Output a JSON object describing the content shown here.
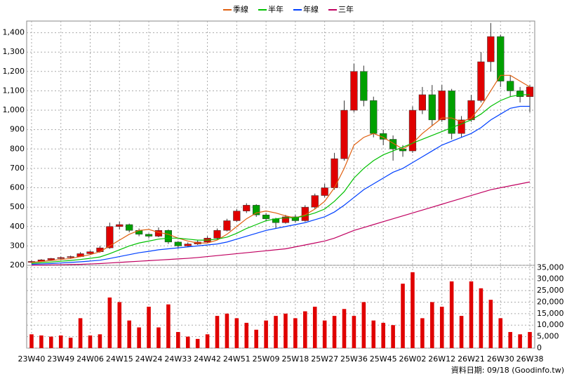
{
  "chart_data": [
    {
      "type": "candlestick",
      "ohlc": [
        [
          215,
          225,
          212,
          220
        ],
        [
          220,
          232,
          218,
          228
        ],
        [
          228,
          238,
          225,
          235
        ],
        [
          235,
          245,
          232,
          240
        ],
        [
          240,
          250,
          236,
          245
        ],
        [
          245,
          268,
          242,
          260
        ],
        [
          260,
          275,
          255,
          270
        ],
        [
          270,
          300,
          265,
          290
        ],
        [
          290,
          420,
          285,
          400
        ],
        [
          400,
          425,
          385,
          410
        ],
        [
          410,
          415,
          370,
          380
        ],
        [
          380,
          390,
          350,
          360
        ],
        [
          360,
          365,
          340,
          350
        ],
        [
          350,
          395,
          345,
          380
        ],
        [
          380,
          385,
          310,
          320
        ],
        [
          320,
          325,
          285,
          300
        ],
        [
          300,
          318,
          295,
          310
        ],
        [
          310,
          328,
          305,
          320
        ],
        [
          320,
          350,
          315,
          340
        ],
        [
          340,
          390,
          335,
          380
        ],
        [
          380,
          440,
          375,
          430
        ],
        [
          430,
          490,
          425,
          480
        ],
        [
          480,
          520,
          470,
          510
        ],
        [
          510,
          515,
          450,
          460
        ],
        [
          460,
          470,
          430,
          440
        ],
        [
          440,
          445,
          390,
          420
        ],
        [
          420,
          460,
          415,
          450
        ],
        [
          450,
          460,
          420,
          430
        ],
        [
          430,
          510,
          425,
          500
        ],
        [
          500,
          570,
          490,
          560
        ],
        [
          560,
          620,
          550,
          600
        ],
        [
          600,
          780,
          590,
          750
        ],
        [
          750,
          1050,
          740,
          1000
        ],
        [
          1000,
          1240,
          990,
          1200
        ],
        [
          1200,
          1230,
          1020,
          1050
        ],
        [
          1050,
          1070,
          860,
          880
        ],
        [
          880,
          900,
          820,
          850
        ],
        [
          850,
          870,
          740,
          800
        ],
        [
          800,
          820,
          760,
          790
        ],
        [
          790,
          1020,
          780,
          1000
        ],
        [
          1000,
          1120,
          980,
          1080
        ],
        [
          1080,
          1130,
          920,
          950
        ],
        [
          950,
          1130,
          940,
          1100
        ],
        [
          1100,
          1110,
          850,
          880
        ],
        [
          880,
          970,
          860,
          950
        ],
        [
          950,
          1080,
          940,
          1050
        ],
        [
          1050,
          1300,
          1040,
          1250
        ],
        [
          1250,
          1450,
          1200,
          1380
        ],
        [
          1380,
          1390,
          1120,
          1150
        ],
        [
          1150,
          1180,
          1070,
          1100
        ],
        [
          1100,
          1120,
          1040,
          1070
        ],
        [
          1070,
          1130,
          990,
          1120
        ]
      ],
      "up_color": "#e00000",
      "down_color": "#00a000",
      "series": [
        {
          "name": "季線",
          "color": "#e06010",
          "values": [
            215,
            220,
            225,
            230,
            235,
            245,
            255,
            270,
            300,
            330,
            360,
            380,
            385,
            370,
            360,
            340,
            325,
            315,
            315,
            330,
            360,
            400,
            440,
            470,
            480,
            470,
            455,
            445,
            460,
            490,
            530,
            600,
            700,
            820,
            860,
            880,
            860,
            830,
            800,
            830,
            880,
            920,
            960,
            960,
            940,
            960,
            1020,
            1100,
            1180,
            1180,
            1150,
            1120
          ]
        },
        {
          "name": "半年",
          "color": "#00c000",
          "values": [
            210,
            213,
            217,
            221,
            225,
            230,
            236,
            243,
            260,
            280,
            300,
            315,
            325,
            335,
            340,
            340,
            335,
            330,
            330,
            335,
            345,
            365,
            390,
            410,
            430,
            440,
            445,
            445,
            455,
            470,
            490,
            530,
            580,
            650,
            700,
            740,
            770,
            790,
            810,
            830,
            850,
            870,
            890,
            910,
            930,
            950,
            980,
            1020,
            1050,
            1070,
            1080,
            1080
          ]
        },
        {
          "name": "年線",
          "color": "#0040ff",
          "values": [
            205,
            207,
            209,
            212,
            215,
            218,
            222,
            226,
            235,
            245,
            255,
            265,
            272,
            280,
            285,
            290,
            295,
            300,
            305,
            310,
            320,
            335,
            350,
            365,
            380,
            390,
            400,
            410,
            420,
            435,
            450,
            475,
            510,
            550,
            590,
            620,
            650,
            680,
            700,
            730,
            760,
            790,
            820,
            840,
            860,
            880,
            910,
            950,
            980,
            1010,
            1020,
            1020
          ]
        },
        {
          "name": "三年",
          "color": "#c00060",
          "values": [
            200,
            201,
            202,
            203,
            204,
            205,
            207,
            209,
            212,
            215,
            218,
            221,
            224,
            227,
            230,
            233,
            236,
            240,
            245,
            250,
            255,
            260,
            265,
            270,
            275,
            280,
            285,
            295,
            305,
            315,
            325,
            340,
            360,
            380,
            395,
            410,
            425,
            440,
            455,
            470,
            485,
            500,
            515,
            530,
            545,
            560,
            575,
            590,
            600,
            610,
            620,
            630
          ]
        }
      ],
      "ylim": [
        200,
        1460
      ],
      "yticks": [
        200,
        300,
        400,
        500,
        600,
        700,
        800,
        900,
        {
          "value": 1000,
          "label": "1,000"
        },
        {
          "value": 1100,
          "label": "1,100"
        },
        {
          "value": 1200,
          "label": "1,200"
        },
        {
          "value": 1300,
          "label": "1,300"
        },
        {
          "value": 1400,
          "label": "1,400"
        }
      ],
      "grid": true
    },
    {
      "type": "bar",
      "categories": [
        "23W40",
        null,
        null,
        "23W49",
        null,
        null,
        "24W06",
        null,
        null,
        "24W15",
        null,
        null,
        "24W24",
        null,
        null,
        "24W33",
        null,
        null,
        "24W42",
        null,
        null,
        "24W51",
        null,
        null,
        "25W09",
        null,
        null,
        "25W18",
        null,
        null,
        "25W27",
        null,
        null,
        "25W36",
        null,
        null,
        "25W45",
        null,
        null,
        "26W02",
        null,
        null,
        "26W12",
        null,
        null,
        "26W21",
        null,
        null,
        "26W30",
        null,
        null,
        "26W38"
      ],
      "values": [
        6000,
        5500,
        5000,
        5500,
        4500,
        13000,
        5500,
        6000,
        22000,
        20000,
        12000,
        9000,
        18000,
        9000,
        19000,
        7000,
        5000,
        4000,
        6000,
        14000,
        15000,
        13000,
        11000,
        8000,
        12000,
        14000,
        15000,
        13000,
        16000,
        18000,
        12000,
        14000,
        17000,
        14000,
        20000,
        12000,
        11000,
        10000,
        28000,
        33000,
        13000,
        20000,
        18000,
        29000,
        14000,
        29000,
        26000,
        21000,
        13000,
        7000,
        6000,
        7000
      ],
      "color": "#e00000",
      "ylim": [
        0,
        36000
      ],
      "yticks": [
        0,
        {
          "value": 5000,
          "label": "5,000"
        },
        {
          "value": 10000,
          "label": "10,000"
        },
        {
          "value": 15000,
          "label": "15,000"
        },
        {
          "value": 20000,
          "label": "20,000"
        },
        {
          "value": 25000,
          "label": "25,000"
        },
        {
          "value": 30000,
          "label": "30,000"
        },
        {
          "value": 35000,
          "label": "35,000"
        }
      ],
      "grid": true
    }
  ],
  "footer": "資料日期: 09/18 (Goodinfo.tw)"
}
